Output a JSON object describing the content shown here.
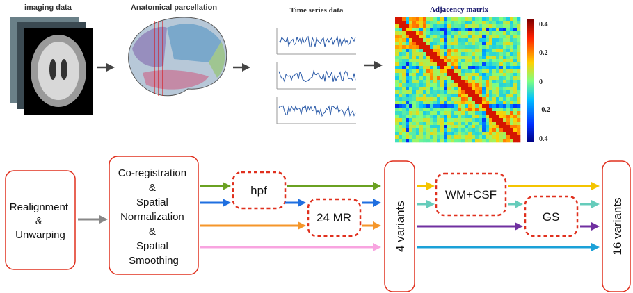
{
  "top": {
    "imaging_label": "imaging data",
    "parcellation_label": "Anatomical parcellation",
    "timeseries_label": "Time series data",
    "matrix_title": "Adjacency matrix",
    "colorbar_labels": [
      "0.4",
      "0.2",
      "0",
      "-0.2",
      "0.4"
    ]
  },
  "nodes": [
    {
      "lines": [
        "Realignment",
        "&",
        "Unwarping"
      ]
    },
    {
      "lines": [
        "Co-registration",
        "&",
        "Spatial",
        "Normalization",
        "&",
        "Spatial",
        "Smoothing"
      ]
    },
    {
      "label": "hpf"
    },
    {
      "label": "24 MR"
    },
    {
      "label": "4 variants"
    },
    {
      "label": "WM+CSF"
    },
    {
      "label": "GS"
    },
    {
      "label": "16 variants"
    }
  ]
}
